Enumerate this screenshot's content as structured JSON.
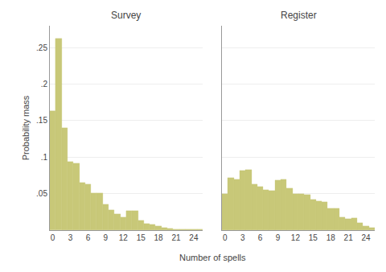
{
  "chart_data": [
    {
      "type": "bar",
      "title": "Survey",
      "x": [
        0,
        1,
        2,
        3,
        4,
        5,
        6,
        7,
        8,
        9,
        10,
        11,
        12,
        13,
        14,
        15,
        16,
        17,
        18,
        19,
        20,
        21,
        22,
        23,
        24,
        25
      ],
      "values": [
        0.163,
        0.262,
        0.14,
        0.094,
        0.092,
        0.065,
        0.063,
        0.051,
        0.051,
        0.035,
        0.028,
        0.022,
        0.018,
        0.027,
        0.027,
        0.013,
        0.009,
        0.008,
        0.005,
        0.003,
        0.002,
        0.001,
        0.001,
        0.001,
        0.001,
        0.001
      ],
      "color": "#c8c878",
      "xlabel": "Number of spells",
      "ylabel": "Probability mass",
      "xlim": [
        -0.5,
        25.5
      ],
      "xticks": [
        0,
        3,
        6,
        9,
        12,
        15,
        18,
        21,
        24
      ],
      "ylim": [
        0,
        0.28
      ],
      "yticks": [
        {
          "value": 0.05,
          "label": ".05"
        },
        {
          "value": 0.1,
          "label": ".1"
        },
        {
          "value": 0.15,
          "label": ".15"
        },
        {
          "value": 0.2,
          "label": ".2"
        },
        {
          "value": 0.25,
          "label": ".25"
        }
      ],
      "grid": true
    },
    {
      "type": "bar",
      "title": "Register",
      "x": [
        0,
        1,
        2,
        3,
        4,
        5,
        6,
        7,
        8,
        9,
        10,
        11,
        12,
        13,
        14,
        15,
        16,
        17,
        18,
        19,
        20,
        21,
        22,
        23,
        24,
        25
      ],
      "values": [
        0.05,
        0.072,
        0.07,
        0.082,
        0.083,
        0.063,
        0.06,
        0.055,
        0.054,
        0.068,
        0.069,
        0.057,
        0.05,
        0.05,
        0.049,
        0.042,
        0.04,
        0.039,
        0.03,
        0.03,
        0.018,
        0.015,
        0.016,
        0.01,
        0.006,
        0.003
      ],
      "color": "#c8c878",
      "xlim": [
        -0.5,
        25.5
      ],
      "xticks": [
        0,
        3,
        6,
        9,
        12,
        15,
        18,
        21,
        24
      ],
      "ylim": [
        0,
        0.28
      ],
      "yticks": [
        {
          "value": 0.05,
          "label": ".05"
        },
        {
          "value": 0.1,
          "label": ".1"
        },
        {
          "value": 0.15,
          "label": ".15"
        },
        {
          "value": 0.2,
          "label": ".2"
        },
        {
          "value": 0.25,
          "label": ".25"
        }
      ],
      "grid": true,
      "tick_labels": "x"
    }
  ]
}
